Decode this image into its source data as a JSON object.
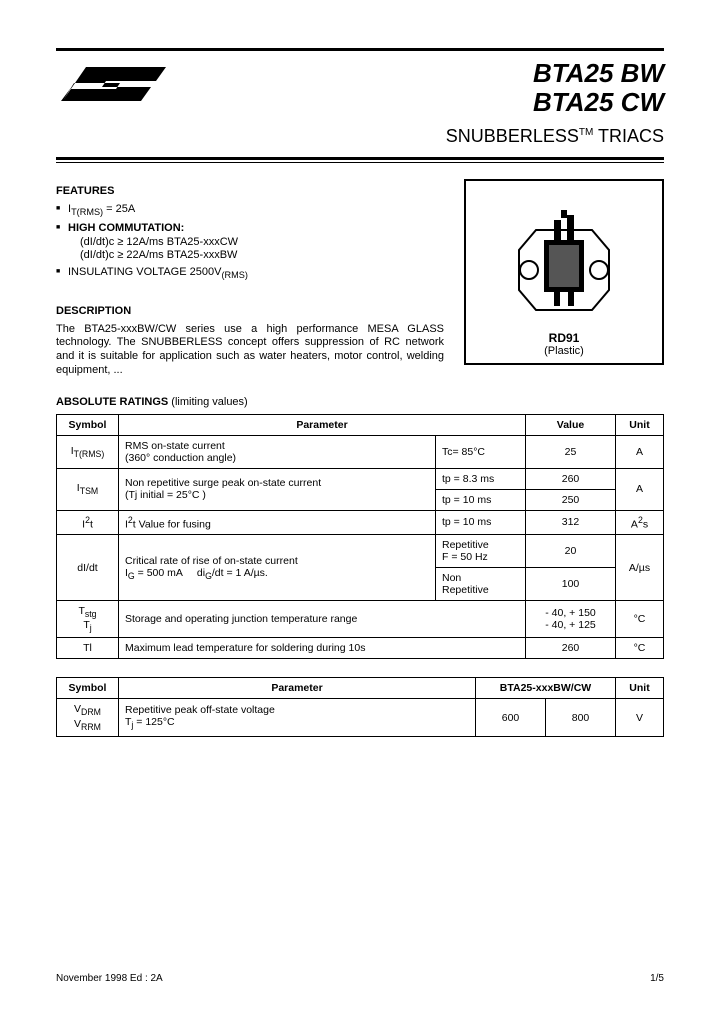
{
  "header": {
    "part1": "BTA25 BW",
    "part2": "BTA25 CW",
    "subtitle_pre": "SNUBBERLESS",
    "subtitle_tm": "TM",
    "subtitle_post": " TRIACS"
  },
  "features": {
    "heading": "FEATURES",
    "items": [
      {
        "html": "I<sub>T(RMS)</sub> = 25A"
      },
      {
        "html": "<b>HIGH COMMUTATION:</b>"
      },
      {
        "html": "INSULATING VOLTAGE 2500V<sub>(RMS)</sub>"
      }
    ],
    "comm_sub1": "(dI/dt)c ≥ 12A/ms BTA25-xxxCW",
    "comm_sub2": "(dI/dt)c ≥ 22A/ms BTA25-xxxBW"
  },
  "description": {
    "heading": "DESCRIPTION",
    "text": "The BTA25-xxxBW/CW series use a high performance MESA GLASS technology.\nThe SNUBBERLESS concept offers suppression of RC network and it is suitable for application such as water heaters, motor control, welding equipment, ..."
  },
  "package": {
    "label": "RD91",
    "sub": "(Plastic)"
  },
  "ratings": {
    "heading": "ABSOLUTE RATINGS",
    "paren": "  (limiting values)",
    "columns": {
      "symbol": "Symbol",
      "parameter": "Parameter",
      "value": "Value",
      "unit": "Unit"
    },
    "rows": {
      "itrms": {
        "sym": "I<sub>T(RMS)</sub>",
        "param": "RMS on-state current<br>(360° conduction angle)",
        "cond": "Tc= 85°C",
        "val": "25",
        "unit": "A"
      },
      "itsm": {
        "sym": "I<sub>TSM</sub>",
        "param": "Non repetitive surge peak on-state current<br>(Tj initial = 25°C )",
        "cond1": "tp = 8.3 ms",
        "val1": "260",
        "cond2": "tp = 10 ms",
        "val2": "250",
        "unit": "A"
      },
      "i2t": {
        "sym": "I<sup>2</sup>t",
        "param": "I<sup>2</sup>t Value for fusing",
        "cond": "tp = 10 ms",
        "val": "312",
        "unit": "A<sup>2</sup>s"
      },
      "didt": {
        "sym": "dI/dt",
        "param": "Critical rate of rise of on-state current<br>I<sub>G</sub> = 500 mA &nbsp;&nbsp;&nbsp; di<sub>G</sub>/dt = 1 A/µs.",
        "cond1": "Repetitive<br>F = 50 Hz",
        "val1": "20",
        "cond2": "Non<br>Repetitive",
        "val2": "100",
        "unit": "A/µs"
      },
      "tstg": {
        "sym": "T<sub>stg</sub><br>T<sub>j</sub>",
        "param": "Storage and operating junction temperature range",
        "val": "- 40, + 150<br>- 40, + 125",
        "unit": "°C"
      },
      "tl": {
        "sym": "Tl",
        "param": "Maximum lead temperature for soldering during  10s",
        "val": "260",
        "unit": "°C"
      }
    }
  },
  "table2": {
    "columns": {
      "symbol": "Symbol",
      "parameter": "Parameter",
      "device": "BTA25-xxxBW/CW",
      "unit": "Unit"
    },
    "row": {
      "sym": "V<sub>DRM</sub><br>V<sub>RRM</sub>",
      "param": "Repetitive peak off-state voltage<br>T<sub>j</sub> = 125°C",
      "v1": "600",
      "v2": "800",
      "unit": "V"
    }
  },
  "footer": {
    "left": "November 1998  Ed : 2A",
    "right": "1/5"
  }
}
